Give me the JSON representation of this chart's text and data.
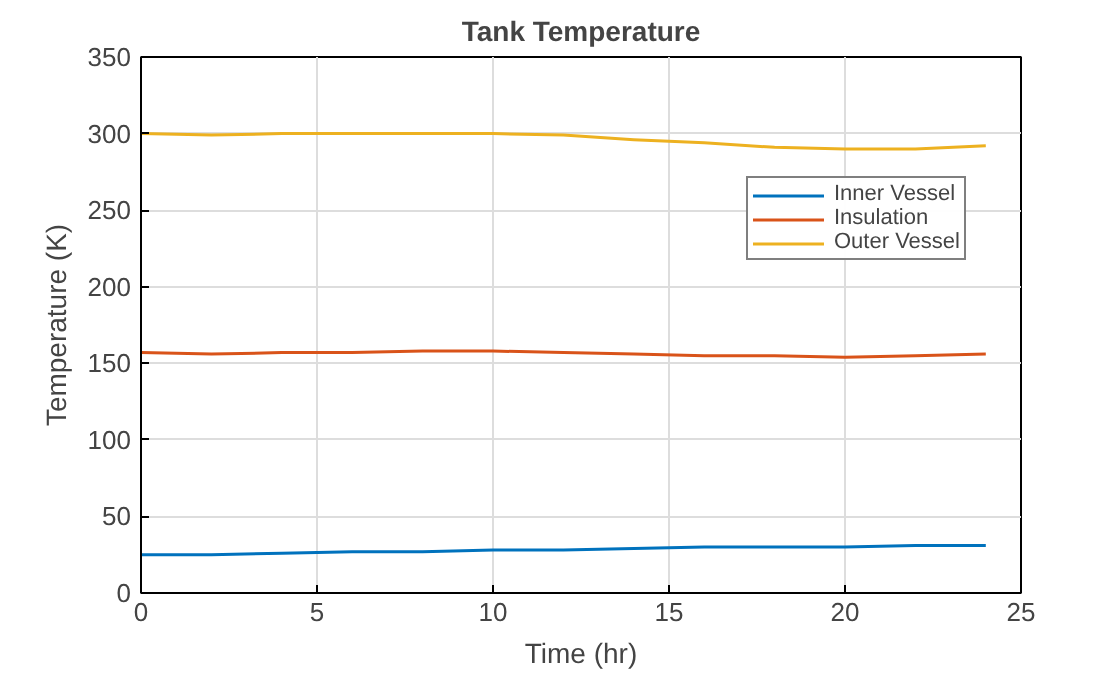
{
  "chart_data": {
    "type": "line",
    "title": "Tank Temperature",
    "xlabel": "Time (hr)",
    "ylabel": "Temperature (K)",
    "x": [
      0,
      2,
      4,
      6,
      8,
      10,
      12,
      14,
      16,
      18,
      20,
      22,
      24
    ],
    "series": [
      {
        "name": "Inner Vessel",
        "color": "#0072bd",
        "values": [
          25,
          25,
          26,
          27,
          27,
          28,
          28,
          29,
          30,
          30,
          30,
          31,
          31
        ]
      },
      {
        "name": "Insulation",
        "color": "#d95319",
        "values": [
          157,
          156,
          157,
          157,
          158,
          158,
          157,
          156,
          155,
          155,
          154,
          155,
          156
        ]
      },
      {
        "name": "Outer Vessel",
        "color": "#edb120",
        "values": [
          300,
          299,
          300,
          300,
          300,
          300,
          299,
          296,
          294,
          291,
          290,
          290,
          292
        ]
      }
    ],
    "xlim": [
      0,
      25
    ],
    "ylim": [
      0,
      350
    ],
    "xticks": [
      0,
      5,
      10,
      15,
      20,
      25
    ],
    "yticks": [
      0,
      50,
      100,
      150,
      200,
      250,
      300,
      350
    ],
    "grid": true,
    "legend": "top right",
    "line_style": "solid",
    "marker": "none"
  }
}
